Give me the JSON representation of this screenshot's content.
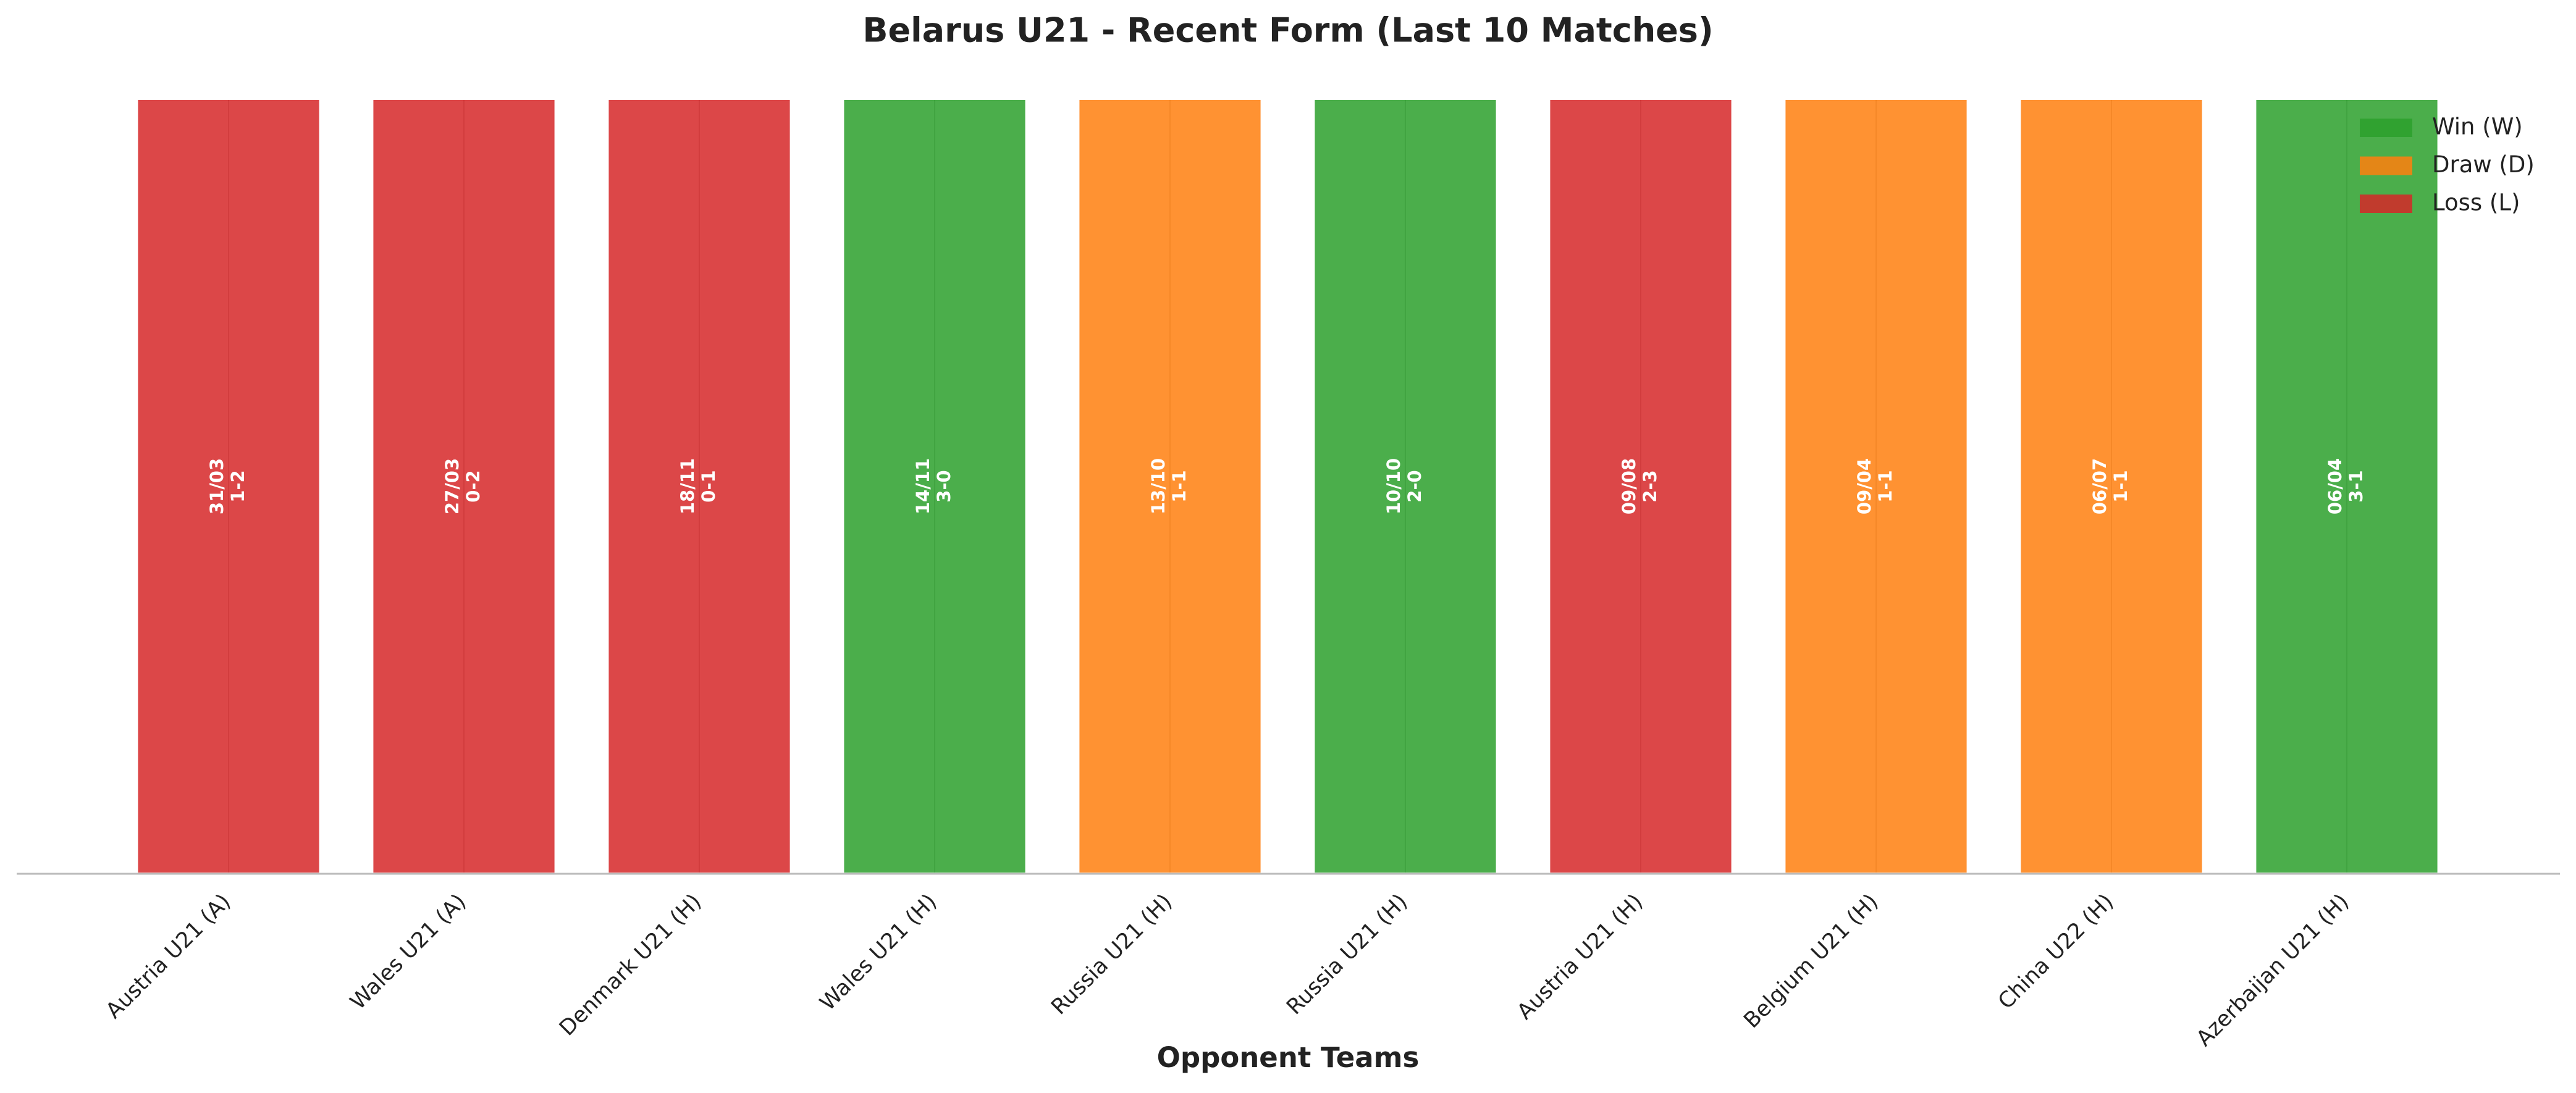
{
  "chart_data": {
    "type": "bar",
    "title": "Belarus U21 - Recent Form (Last 10 Matches)",
    "x_label": "Opponent Teams",
    "categories": [
      "Austria U21 (A)",
      "Wales U21 (A)",
      "Denmark U21 (H)",
      "Wales U21 (H)",
      "Russia U21 (H)",
      "Russia U21 (H)",
      "Austria U21 (H)",
      "Belgium U21 (H)",
      "China U22 (H)",
      "Azerbaijan U21 (H)"
    ],
    "values": [
      1,
      1,
      1,
      1,
      1,
      1,
      1,
      1,
      1,
      1
    ],
    "dates": [
      "31/03",
      "27/03",
      "18/11",
      "14/11",
      "13/10",
      "10/10",
      "09/08",
      "09/04",
      "06/07",
      "06/04"
    ],
    "scores": [
      "1-2",
      "0-2",
      "0-1",
      "3-0",
      "1-1",
      "2-0",
      "2-3",
      "1-1",
      "1-1",
      "3-1"
    ],
    "bar_colors": [
      "#d62728",
      "#d62728",
      "#d62728",
      "#2ca02c",
      "#ff7f0e",
      "#2ca02c",
      "#d62728",
      "#ff7f0e",
      "#ff7f0e",
      "#2ca02c"
    ],
    "ylim": [
      0,
      1
    ],
    "grid": true,
    "legend_position": "upper right",
    "legend": [
      {
        "name": "Win (W)",
        "color": "#2ca02c"
      },
      {
        "name": "Draw (D)",
        "color": "#ff7f0e"
      },
      {
        "name": "Loss (L)",
        "color": "#d62728"
      }
    ]
  }
}
